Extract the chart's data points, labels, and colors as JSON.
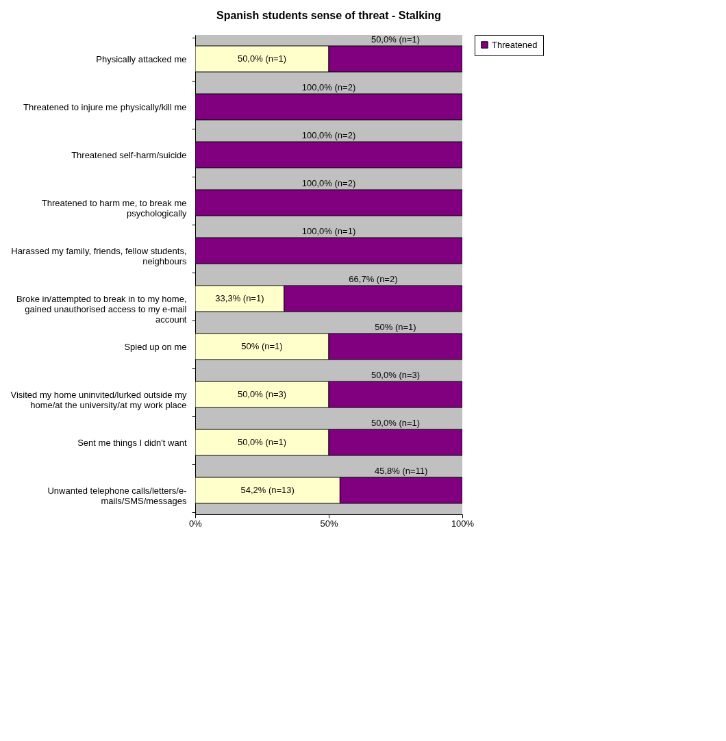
{
  "chart_data": {
    "type": "bar",
    "orientation": "horizontal",
    "stacked": true,
    "title": "Spanish students sense of threat - Stalking",
    "categories": [
      "Physically attacked me",
      "Threatened to injure me physically/kill me",
      "Threatened self-harm/suicide",
      "Threatened to harm me, to break me psychologically",
      "Harassed my family, friends, fellow students, neighbours",
      "Broke in/attempted to break in to my home, gained unauthorised access to my e-mail account",
      "Spied up on me",
      "Visited my home uninvited/lurked outside my home/at the university/at my work place",
      "Sent me things I didn't want",
      "Unwanted telephone calls/letters/e-mails/SMS/messages"
    ],
    "series": [
      {
        "color": "#ffffcc",
        "values": [
          50,
          0,
          0,
          0,
          0,
          33.3,
          50,
          50,
          50,
          54.2
        ],
        "value_labels": [
          "50,0% (n=1)",
          null,
          null,
          null,
          null,
          "33,3% (n=1)",
          "50% (n=1)",
          "50,0% (n=3)",
          "50,0% (n=1)",
          "54,2% (n=13)"
        ]
      },
      {
        "name": "Threatened",
        "color": "#800080",
        "values": [
          50,
          100,
          100,
          100,
          100,
          66.7,
          50,
          50,
          50,
          45.8
        ],
        "value_labels": [
          "50,0% (n=1)",
          "100,0% (n=2)",
          "100,0% (n=2)",
          "100,0% (n=2)",
          "100,0% (n=1)",
          "66,7% (n=2)",
          "50% (n=1)",
          "50,0% (n=3)",
          "50,0% (n=1)",
          "45,8% (n=11)"
        ]
      }
    ],
    "xlim": [
      0,
      100
    ],
    "xticks": [
      {
        "value": 0,
        "label": "0%"
      },
      {
        "value": 50,
        "label": "50%"
      },
      {
        "value": 100,
        "label": "100%"
      }
    ],
    "legend": "right"
  }
}
